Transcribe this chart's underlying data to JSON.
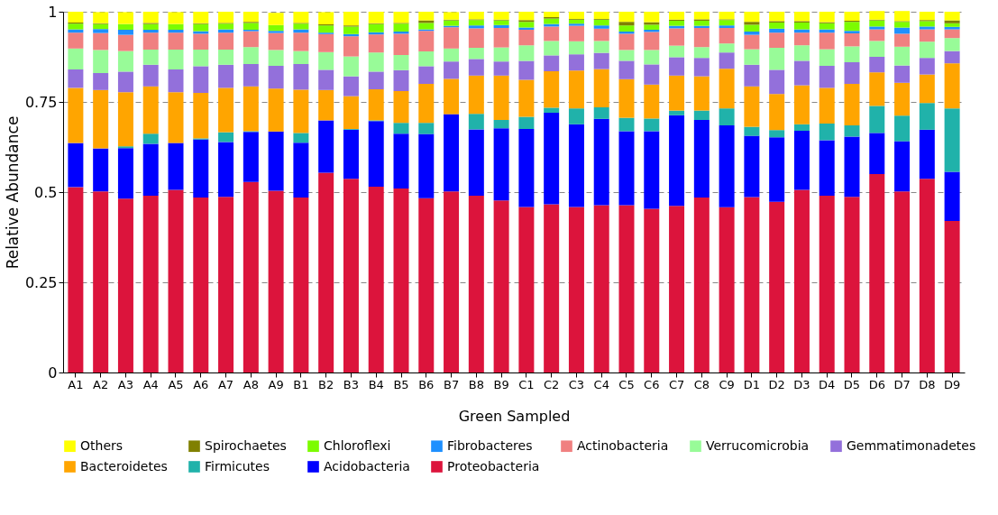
{
  "chart_data": {
    "type": "bar",
    "stacked": true,
    "xlabel": "Green Sampled",
    "ylabel": "Relative Abundance",
    "categories": [
      "A1",
      "A2",
      "A3",
      "A4",
      "A5",
      "A6",
      "A7",
      "A8",
      "A9",
      "B1",
      "B2",
      "B3",
      "B4",
      "B5",
      "B6",
      "B7",
      "B8",
      "B9",
      "C1",
      "C2",
      "C3",
      "C4",
      "C5",
      "C6",
      "C7",
      "C8",
      "C9",
      "D1",
      "D2",
      "D3",
      "D4",
      "D5",
      "D6",
      "D7",
      "D8",
      "D9"
    ],
    "ylim": [
      0,
      1
    ],
    "yticks": [
      0,
      0.25,
      0.5,
      0.75,
      1
    ],
    "grid": "y",
    "legend": "bottom",
    "series": [
      {
        "name": "Proteobacteria",
        "color": "#dc143c",
        "values": [
          0.514,
          0.502,
          0.482,
          0.49,
          0.506,
          0.485,
          0.487,
          0.528,
          0.504,
          0.485,
          0.554,
          0.537,
          0.515,
          0.51,
          0.483,
          0.502,
          0.49,
          0.477,
          0.459,
          0.466,
          0.459,
          0.464,
          0.464,
          0.454,
          0.462,
          0.485,
          0.458,
          0.486,
          0.473,
          0.506,
          0.49,
          0.487,
          0.55,
          0.502,
          0.537,
          0.42
        ]
      },
      {
        "name": "Acidobacteria",
        "color": "#0000ff",
        "values": [
          0.122,
          0.119,
          0.14,
          0.144,
          0.13,
          0.161,
          0.152,
          0.139,
          0.164,
          0.152,
          0.145,
          0.136,
          0.182,
          0.152,
          0.178,
          0.214,
          0.184,
          0.2,
          0.216,
          0.254,
          0.229,
          0.239,
          0.205,
          0.215,
          0.251,
          0.215,
          0.227,
          0.17,
          0.179,
          0.164,
          0.154,
          0.167,
          0.114,
          0.139,
          0.136,
          0.136
        ]
      },
      {
        "name": "Firmicutes",
        "color": "#20b2aa",
        "values": [
          null,
          null,
          0.005,
          0.028,
          null,
          0.003,
          0.027,
          0.002,
          null,
          0.027,
          null,
          0.002,
          0.002,
          0.03,
          0.031,
          null,
          0.043,
          0.023,
          0.034,
          0.014,
          0.044,
          0.032,
          0.037,
          0.035,
          0.013,
          0.026,
          0.047,
          0.025,
          0.02,
          0.018,
          0.046,
          0.031,
          0.075,
          0.071,
          0.074,
          0.176
        ]
      },
      {
        "name": "Bacteroidetes",
        "color": "#ffa500",
        "values": [
          0.153,
          0.162,
          0.15,
          0.131,
          0.141,
          0.126,
          0.123,
          0.124,
          0.119,
          0.12,
          0.084,
          0.091,
          0.086,
          0.088,
          0.108,
          0.098,
          0.106,
          0.123,
          0.102,
          0.101,
          0.105,
          0.106,
          0.107,
          0.094,
          0.097,
          0.095,
          0.11,
          0.112,
          0.1,
          0.108,
          0.099,
          0.115,
          0.093,
          0.091,
          0.079,
          0.125
        ]
      },
      {
        "name": "Gemmatimonadetes",
        "color": "#9370db",
        "values": [
          0.051,
          0.047,
          0.057,
          0.06,
          0.063,
          0.074,
          0.064,
          0.062,
          0.063,
          0.071,
          0.056,
          0.055,
          0.049,
          0.058,
          0.049,
          0.048,
          0.046,
          0.039,
          0.053,
          0.044,
          0.045,
          0.045,
          0.051,
          0.056,
          0.051,
          0.051,
          0.045,
          0.06,
          0.067,
          0.068,
          0.061,
          0.06,
          0.043,
          0.048,
          0.046,
          0.034
        ]
      },
      {
        "name": "Verrucomicrobia",
        "color": "#98fb98",
        "values": [
          0.058,
          0.064,
          0.057,
          0.042,
          0.055,
          0.046,
          0.042,
          0.047,
          0.044,
          0.036,
          0.049,
          0.055,
          0.053,
          0.042,
          0.041,
          0.036,
          0.031,
          0.039,
          0.043,
          0.04,
          0.036,
          0.033,
          0.03,
          0.04,
          0.032,
          0.03,
          0.025,
          0.043,
          0.061,
          0.043,
          0.046,
          0.044,
          0.044,
          0.052,
          0.045,
          0.036
        ]
      },
      {
        "name": "Actinobacteria",
        "color": "#f08080",
        "values": [
          0.044,
          0.047,
          0.045,
          0.047,
          0.047,
          0.044,
          0.047,
          0.044,
          0.047,
          0.051,
          0.05,
          0.056,
          0.05,
          0.059,
          0.057,
          0.059,
          0.054,
          0.054,
          0.043,
          0.04,
          0.043,
          0.034,
          0.045,
          0.05,
          0.048,
          0.053,
          0.043,
          0.04,
          0.042,
          0.035,
          0.046,
          0.036,
          0.032,
          0.036,
          0.034,
          0.024
        ]
      },
      {
        "name": "Fibrobacteres",
        "color": "#1e90ff",
        "values": [
          0.009,
          0.011,
          0.014,
          0.008,
          0.008,
          0.007,
          0.009,
          0.004,
          0.006,
          0.009,
          0.004,
          0.006,
          0.006,
          0.006,
          0.004,
          0.004,
          0.008,
          0.008,
          0.006,
          0.007,
          0.006,
          0.009,
          0.006,
          0.006,
          0.007,
          0.006,
          0.007,
          0.009,
          0.011,
          0.009,
          0.009,
          0.007,
          0.008,
          0.017,
          0.008,
          0.007
        ]
      },
      {
        "name": "Chloroflexi",
        "color": "#7cfc00",
        "values": [
          0.016,
          0.014,
          0.016,
          0.016,
          0.016,
          0.02,
          0.016,
          0.019,
          0.016,
          0.016,
          0.02,
          0.021,
          0.023,
          0.022,
          0.018,
          0.015,
          0.015,
          0.013,
          0.016,
          0.015,
          0.011,
          0.016,
          0.017,
          0.014,
          0.014,
          0.014,
          0.015,
          0.019,
          0.017,
          0.019,
          0.017,
          0.025,
          0.017,
          0.016,
          0.015,
          0.01
        ]
      },
      {
        "name": "Spirochaetes",
        "color": "#808000",
        "values": [
          0.003,
          0.002,
          null,
          0.003,
          null,
          0.002,
          0.002,
          0.003,
          null,
          0.002,
          0.003,
          0.003,
          0.002,
          0.002,
          0.007,
          0.002,
          0.002,
          0.002,
          0.005,
          0.004,
          0.002,
          0.002,
          0.01,
          0.007,
          0.003,
          0.004,
          0.002,
          0.008,
          0.004,
          0.004,
          0.003,
          0.003,
          0.002,
          0.002,
          0.003,
          0.008
        ]
      },
      {
        "name": "Others",
        "color": "#ffff00",
        "values": [
          0.03,
          0.031,
          0.033,
          0.031,
          0.033,
          0.032,
          0.031,
          0.028,
          0.034,
          0.031,
          0.034,
          0.038,
          0.032,
          0.031,
          0.024,
          0.021,
          0.021,
          0.022,
          0.023,
          0.015,
          0.02,
          0.02,
          0.028,
          0.029,
          0.022,
          0.021,
          0.021,
          0.028,
          0.026,
          0.026,
          0.029,
          0.025,
          0.024,
          0.028,
          0.023,
          0.024
        ]
      }
    ]
  }
}
